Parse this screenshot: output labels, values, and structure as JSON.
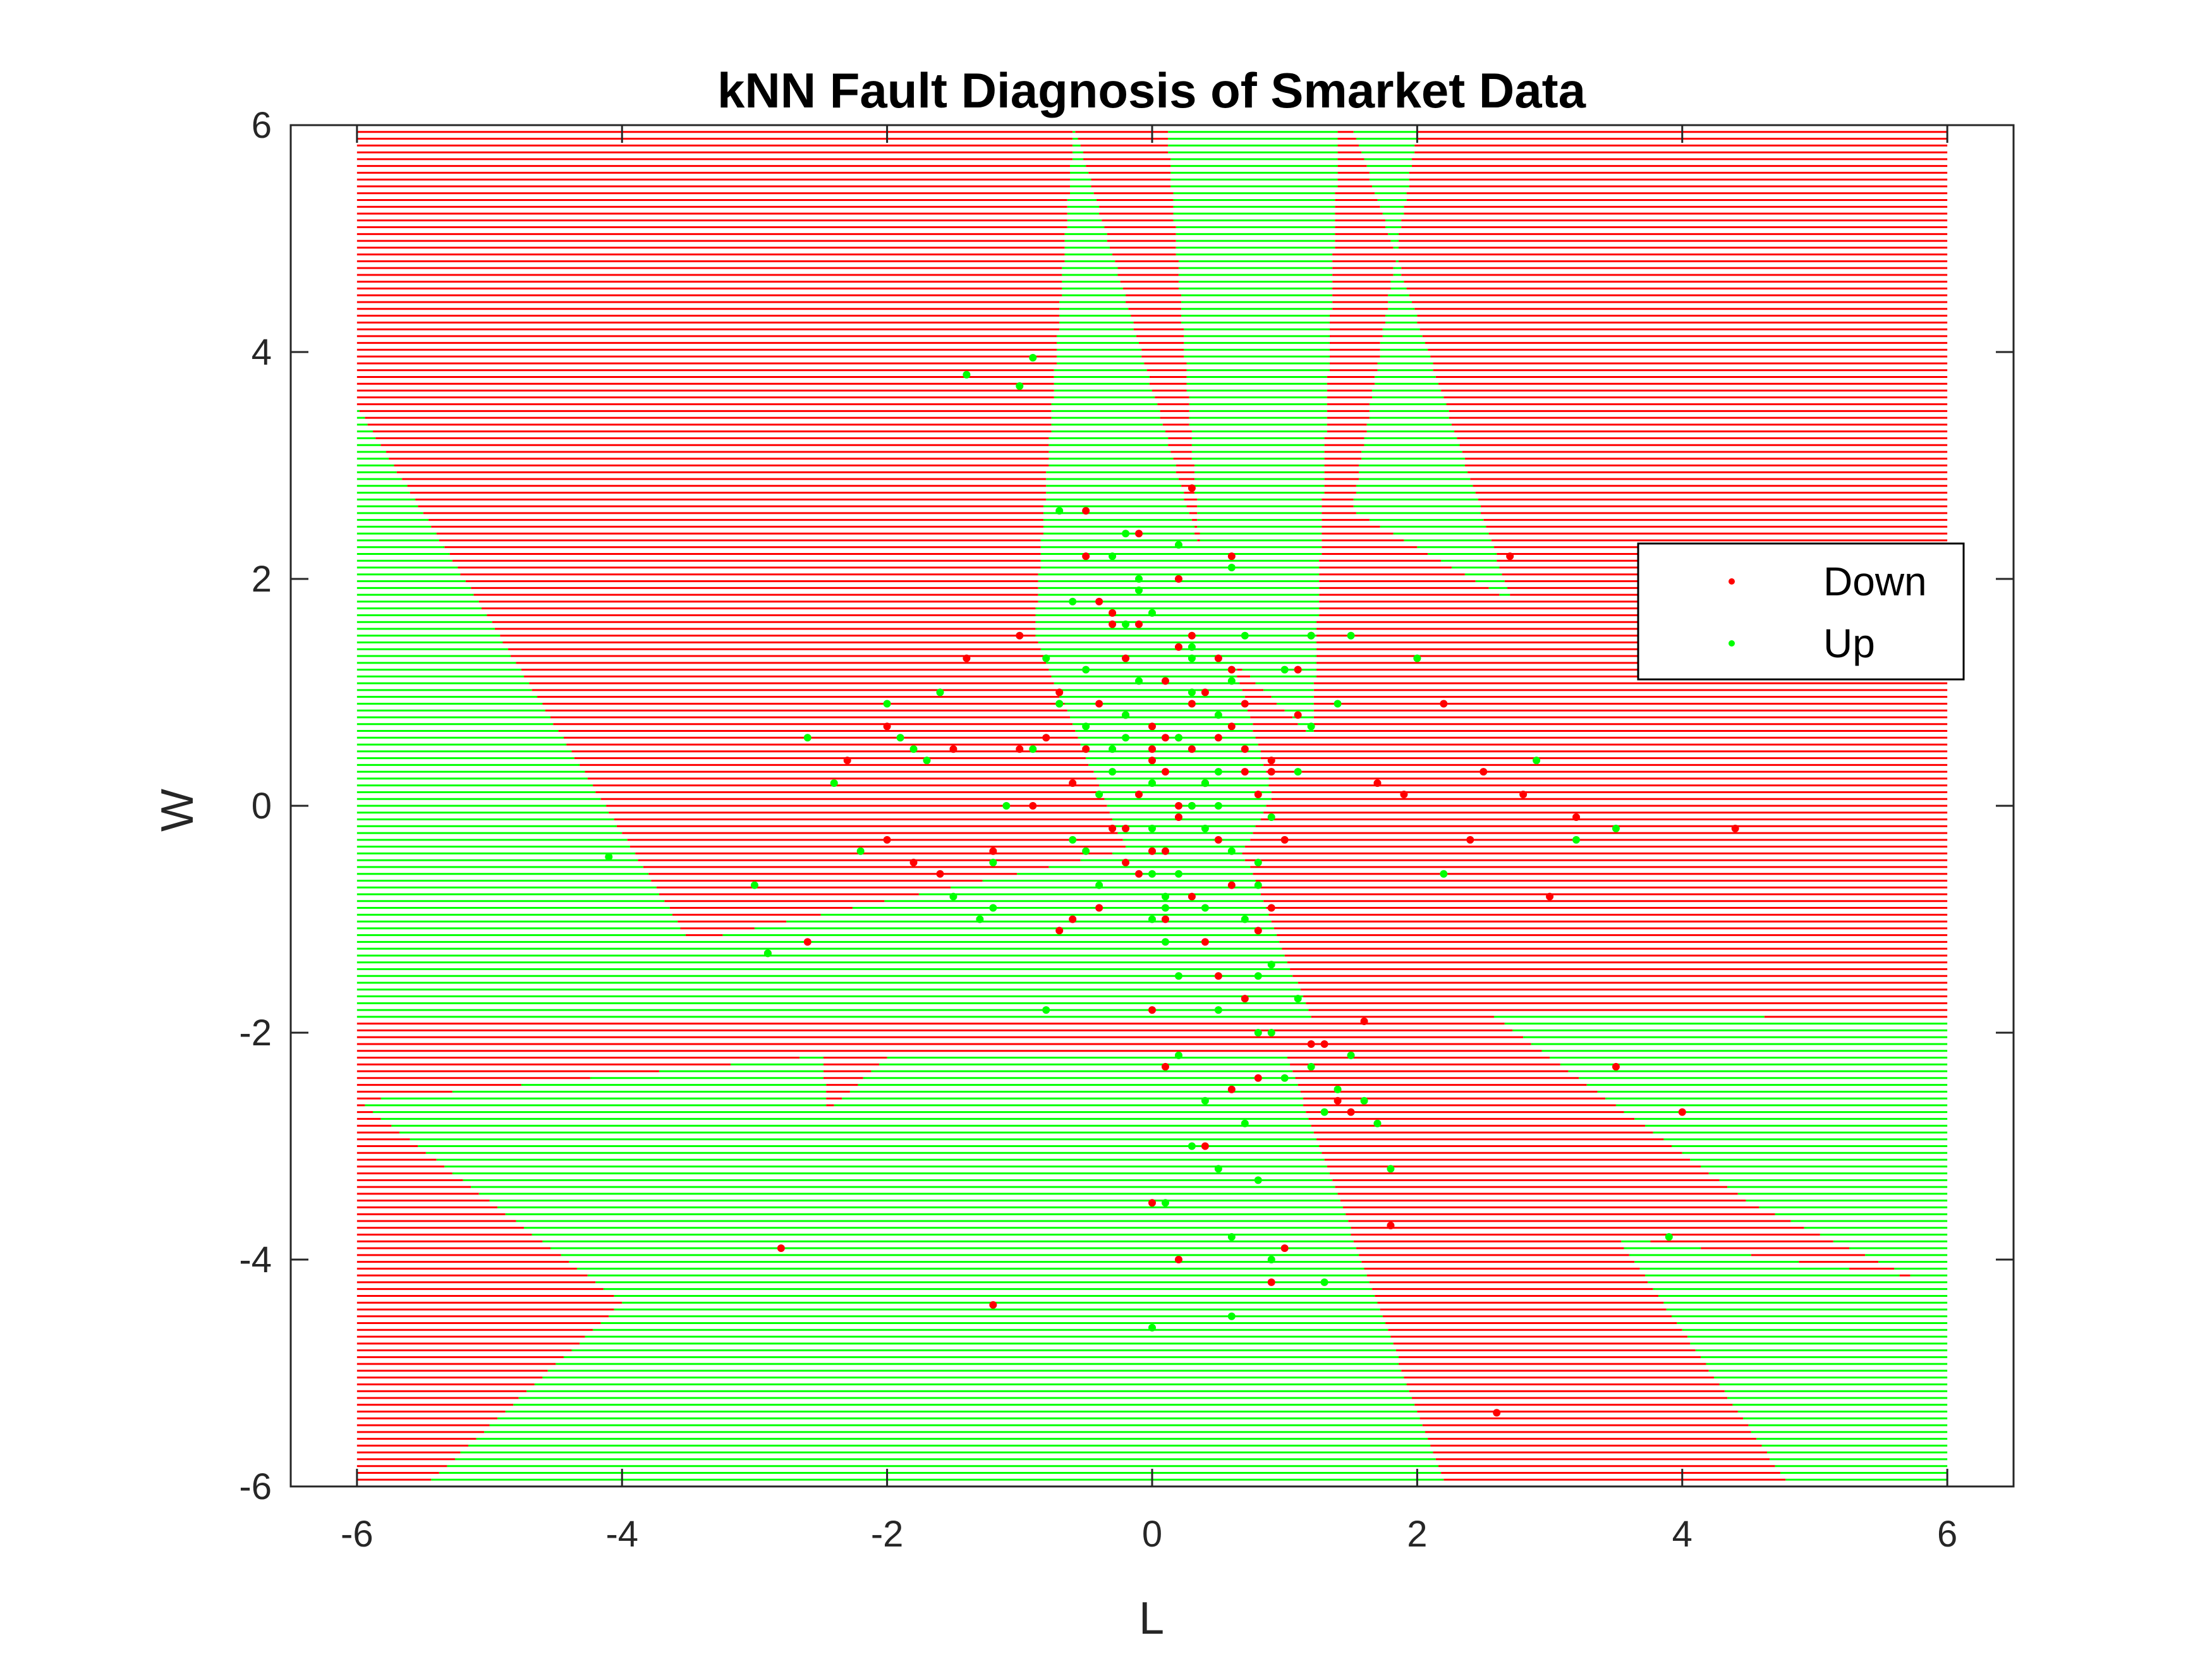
{
  "chart_data": {
    "type": "scatter",
    "title": "kNN Fault Diagnosis of Smarket Data",
    "xlabel": "L",
    "ylabel": "W",
    "xlim": [
      -6.5,
      6.5
    ],
    "ylim": [
      -6,
      6
    ],
    "xticks": [
      -6,
      -4,
      -2,
      0,
      2,
      4,
      6
    ],
    "yticks": [
      -6,
      -4,
      -2,
      0,
      2,
      4,
      6
    ],
    "grid": false,
    "legend_position": "right-upper",
    "background": {
      "description": "kNN decision-region grid over L in [-6,6], W in [-6,6]",
      "regions_up": [
        [
          -6,
          3.5,
          -3.5,
          -1.2,
          0.6,
          -0.2,
          1.2,
          -1.9,
          1.3
        ],
        [
          -6,
          -2.6,
          -2.5,
          -2.2,
          -2.2,
          -6
        ],
        [
          -5.5,
          -6,
          -2.0,
          -2.2,
          1.0,
          -2.2,
          2.2,
          -6
        ],
        [
          -0.6,
          6,
          0.9,
          0.1,
          0.2,
          -1.5,
          -0.9,
          1.5
        ],
        [
          0.1,
          6,
          0.4,
          1.5,
          1.2,
          0.6,
          1.4,
          6
        ],
        [
          1.5,
          6,
          2.7,
          1.8,
          1.5,
          2.6,
          2.0,
          6
        ],
        [
          2.5,
          -1.8,
          6,
          -1.9,
          6,
          -4.3,
          4.5,
          -3.5
        ],
        [
          3.5,
          -3.8,
          6,
          -4.2,
          6,
          -6,
          4.8,
          -6
        ]
      ]
    },
    "series": [
      {
        "name": "Down",
        "color": "#ff0000",
        "x": [
          -0.2,
          0.1,
          0.3,
          -0.1,
          0.5,
          0.2,
          -0.4,
          0.0,
          0.4,
          0.6,
          -0.3,
          0.1,
          0.2,
          -0.5,
          0.7,
          0.3,
          -0.2,
          0.0,
          0.8,
          -0.6,
          0.4,
          0.1,
          -0.1,
          0.5,
          0.2,
          -0.3,
          0.6,
          0.0,
          0.3,
          -0.4,
          0.9,
          0.1,
          -0.7,
          0.4,
          0.2,
          -0.2,
          1.0,
          -0.8,
          0.5,
          0.3,
          0.0,
          -0.5,
          0.7,
          0.1,
          -0.1,
          1.2,
          -1.0,
          0.6,
          0.8,
          -0.9,
          1.4,
          -1.2,
          0.9,
          -0.6,
          1.1,
          0.4,
          -1.4,
          1.5,
          -1.6,
          1.7,
          -2.0,
          2.2,
          -2.3,
          2.5,
          -2.6,
          2.8,
          3.0,
          -2.9,
          3.5,
          4.0,
          -2.8,
          2.7,
          -2.0,
          2.6,
          0.7,
          -1.2,
          1.0,
          0.0,
          1.8,
          -1.0,
          0.9,
          0.3,
          -0.5,
          1.3,
          1.1,
          -0.3,
          0.6,
          1.9,
          -1.5,
          2.4,
          3.2,
          4.4,
          -1.8,
          1.6,
          0.2,
          -0.7,
          1.2,
          0.8,
          -0.4,
          0.5,
          0.1,
          0.4,
          -0.1,
          0.7,
          0.2,
          0.3,
          -0.2,
          0.0,
          0.6,
          0.9
        ],
        "y": [
          0.8,
          0.3,
          0.5,
          0.1,
          0.6,
          -0.1,
          0.9,
          0.4,
          0.2,
          0.7,
          -0.2,
          1.1,
          0.0,
          0.5,
          0.3,
          0.9,
          1.3,
          -0.4,
          0.1,
          0.2,
          1.0,
          0.6,
          -0.6,
          -0.3,
          1.4,
          1.6,
          1.2,
          0.7,
          -0.8,
          1.8,
          0.4,
          -1.0,
          1.0,
          -1.2,
          2.0,
          -0.5,
          -0.3,
          0.6,
          -1.5,
          1.5,
          -1.8,
          2.2,
          -1.7,
          -2.3,
          2.4,
          -2.1,
          0.5,
          -2.5,
          -2.4,
          0.0,
          -2.6,
          -0.4,
          -0.9,
          -1.0,
          1.2,
          -3.0,
          1.3,
          -2.7,
          -0.6,
          0.2,
          -0.3,
          0.9,
          0.4,
          0.3,
          -1.2,
          0.1,
          -0.8,
          -1.3,
          -2.3,
          -2.7,
          -3.9,
          2.2,
          0.7,
          -5.35,
          0.5,
          -4.4,
          -3.9,
          -3.5,
          -3.7,
          1.5,
          -4.2,
          2.8,
          2.6,
          -2.1,
          0.8,
          1.7,
          2.2,
          0.1,
          0.5,
          -0.3,
          -0.1,
          -0.2,
          -0.5,
          -1.9,
          -4.0,
          -1.1,
          1.5,
          -1.1,
          -0.9,
          1.3,
          -0.4,
          0.2,
          1.6,
          0.9,
          0.6,
          0.0,
          -0.2,
          0.5,
          -0.7,
          0.3
        ]
      },
      {
        "name": "Up",
        "color": "#00ff00",
        "x": [
          0.0,
          -0.3,
          0.2,
          -0.5,
          0.4,
          -0.1,
          0.6,
          -0.7,
          0.1,
          0.3,
          -0.4,
          0.8,
          -0.2,
          0.5,
          -0.8,
          0.0,
          0.9,
          -0.6,
          0.2,
          1.0,
          -0.9,
          0.4,
          -0.1,
          1.1,
          -1.1,
          0.7,
          -0.3,
          1.2,
          -1.2,
          0.3,
          0.5,
          -0.5,
          1.3,
          -1.3,
          0.1,
          0.8,
          -0.7,
          1.4,
          -1.5,
          0.6,
          -0.2,
          1.5,
          -1.6,
          0.9,
          0.0,
          -1.8,
          1.6,
          -2.0,
          1.7,
          -2.2,
          1.8,
          -2.4,
          2.0,
          -2.6,
          2.2,
          -2.9,
          2.9,
          -3.0,
          3.2,
          -4.1,
          3.5,
          3.9,
          -1.4,
          -0.9,
          -1.0,
          1.2,
          0.6,
          0.2,
          0.0,
          0.7,
          1.0,
          1.4,
          0.3,
          -0.4,
          0.8,
          0.5,
          0.9,
          0.1,
          1.1,
          -0.2,
          0.4,
          -0.6,
          0.6,
          1.3,
          -1.2,
          0.2,
          -1.7,
          0.8,
          -1.9,
          1.5,
          -0.8,
          0.3,
          -0.1,
          0.5,
          0.7,
          0.0,
          -0.3,
          0.9,
          0.4,
          -0.5,
          0.1,
          1.2,
          0.6,
          -0.7,
          0.2,
          0.0,
          0.5,
          0.3,
          -0.2,
          0.8
        ],
        "y": [
          -0.2,
          0.3,
          -0.6,
          0.7,
          -0.9,
          1.1,
          -0.4,
          0.9,
          -1.2,
          1.4,
          -0.7,
          -1.5,
          1.6,
          -1.8,
          1.3,
          -1.0,
          -2.0,
          1.8,
          -2.2,
          -2.4,
          0.5,
          -2.6,
          2.0,
          -1.7,
          0.0,
          -2.8,
          2.2,
          -2.3,
          -0.5,
          -3.0,
          -3.2,
          1.2,
          -2.7,
          -1.0,
          -3.5,
          -3.3,
          2.6,
          -2.5,
          -0.8,
          -3.8,
          2.4,
          -2.2,
          1.0,
          -4.0,
          -4.6,
          0.5,
          -2.6,
          0.9,
          -2.8,
          -0.4,
          -3.2,
          0.2,
          1.3,
          0.6,
          -0.6,
          -1.3,
          0.4,
          -0.7,
          -0.3,
          -0.45,
          -0.2,
          -3.8,
          3.8,
          3.95,
          3.7,
          1.5,
          2.1,
          2.3,
          1.7,
          1.5,
          1.2,
          0.9,
          0.0,
          0.1,
          -0.5,
          0.8,
          -0.1,
          -0.9,
          0.3,
          0.6,
          0.2,
          -0.3,
          -4.5,
          -4.2,
          -0.9,
          -1.5,
          0.4,
          -2.0,
          0.6,
          1.5,
          -1.8,
          1.0,
          1.9,
          0.3,
          -1.0,
          -0.6,
          0.5,
          -1.4,
          -0.2,
          -0.4,
          -0.8,
          0.7,
          1.1,
          0.9,
          0.6,
          0.2,
          0.0,
          1.3,
          0.8,
          -0.7
        ]
      }
    ],
    "legend": [
      "Down",
      "Up"
    ]
  }
}
